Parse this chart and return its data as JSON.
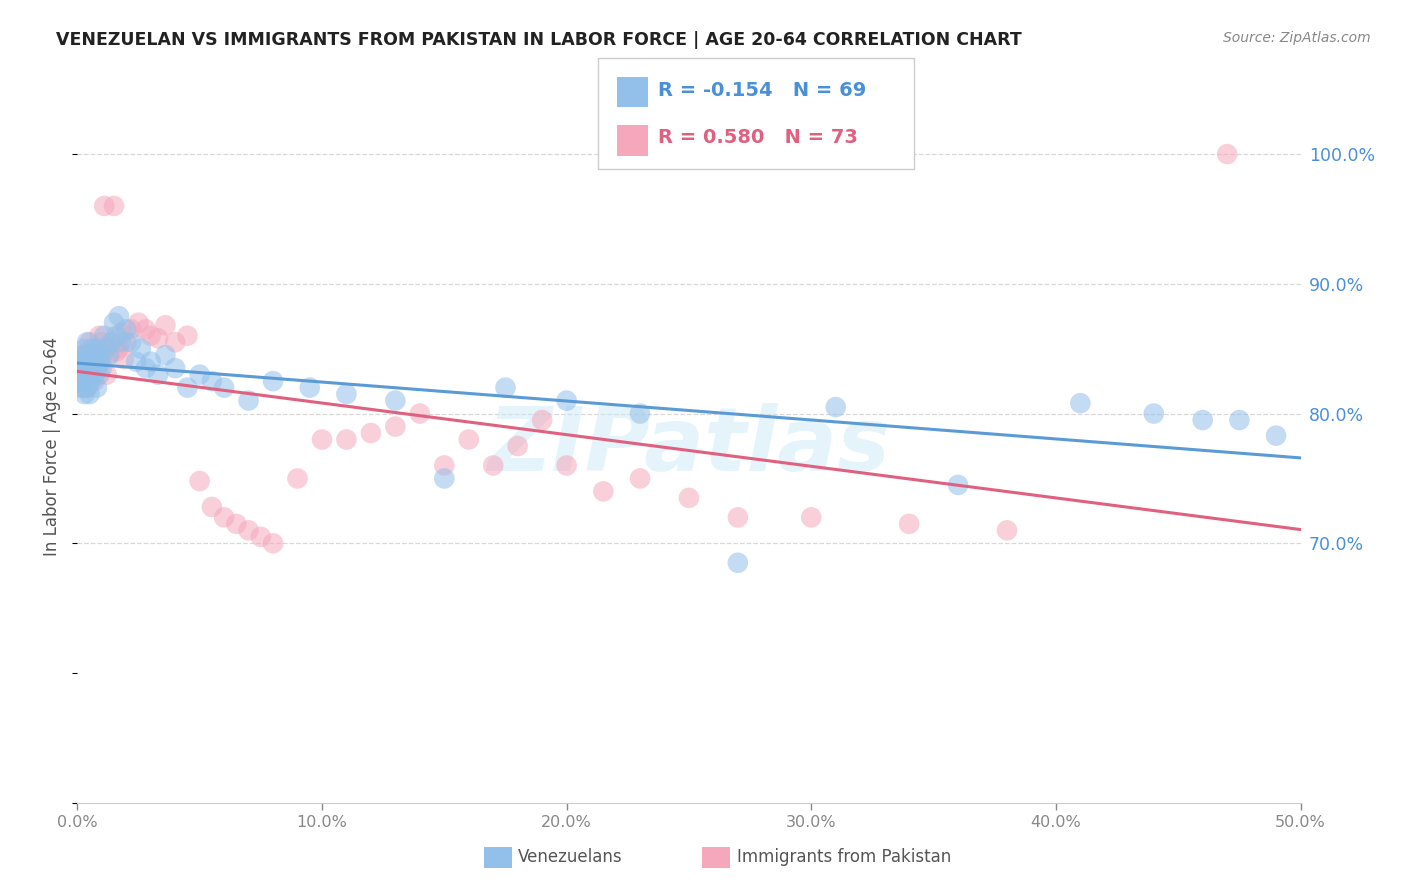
{
  "title": "VENEZUELAN VS IMMIGRANTS FROM PAKISTAN IN LABOR FORCE | AGE 20-64 CORRELATION CHART",
  "source": "Source: ZipAtlas.com",
  "ylabel": "In Labor Force | Age 20-64",
  "legend_venezuelans": "Venezuelans",
  "legend_pakistan": "Immigrants from Pakistan",
  "r_blue": "-0.154",
  "n_blue": "69",
  "r_pink": "0.580",
  "n_pink": "73",
  "blue_color": "#92c0ea",
  "pink_color": "#f5a8bc",
  "blue_line_color": "#5b9bd5",
  "pink_line_color": "#e06080",
  "blue_text_color": "#4a90d9",
  "pink_text_color": "#e06080",
  "watermark": "ZIPatlas",
  "background_color": "#ffffff",
  "xmin": 0.0,
  "xmax": 0.5,
  "ymin": 0.5,
  "ymax": 1.05,
  "ytick_values": [
    0.7,
    0.8,
    0.9,
    1.0
  ],
  "xtick_values": [
    0.0,
    0.1,
    0.2,
    0.3,
    0.4,
    0.5
  ],
  "grid_color": "#d8d8d8",
  "title_color": "#222222",
  "source_color": "#888888",
  "axis_label_color": "#555555",
  "ven_x": [
    0.001,
    0.001,
    0.002,
    0.002,
    0.002,
    0.003,
    0.003,
    0.003,
    0.003,
    0.004,
    0.004,
    0.004,
    0.004,
    0.005,
    0.005,
    0.005,
    0.005,
    0.006,
    0.006,
    0.006,
    0.006,
    0.007,
    0.007,
    0.007,
    0.008,
    0.008,
    0.008,
    0.009,
    0.009,
    0.01,
    0.01,
    0.011,
    0.012,
    0.013,
    0.014,
    0.015,
    0.016,
    0.017,
    0.018,
    0.02,
    0.022,
    0.024,
    0.026,
    0.028,
    0.03,
    0.033,
    0.036,
    0.04,
    0.045,
    0.05,
    0.055,
    0.06,
    0.07,
    0.08,
    0.095,
    0.11,
    0.13,
    0.15,
    0.175,
    0.2,
    0.23,
    0.27,
    0.31,
    0.36,
    0.41,
    0.44,
    0.46,
    0.475,
    0.49
  ],
  "ven_y": [
    0.84,
    0.825,
    0.835,
    0.82,
    0.845,
    0.85,
    0.83,
    0.815,
    0.84,
    0.835,
    0.845,
    0.82,
    0.855,
    0.83,
    0.84,
    0.825,
    0.815,
    0.85,
    0.835,
    0.842,
    0.825,
    0.84,
    0.83,
    0.845,
    0.835,
    0.82,
    0.85,
    0.84,
    0.83,
    0.845,
    0.835,
    0.86,
    0.85,
    0.845,
    0.855,
    0.87,
    0.86,
    0.875,
    0.855,
    0.865,
    0.855,
    0.84,
    0.85,
    0.835,
    0.84,
    0.83,
    0.845,
    0.835,
    0.82,
    0.83,
    0.825,
    0.82,
    0.81,
    0.825,
    0.82,
    0.815,
    0.81,
    0.75,
    0.82,
    0.81,
    0.8,
    0.685,
    0.805,
    0.745,
    0.808,
    0.8,
    0.795,
    0.795,
    0.783
  ],
  "pak_x": [
    0.001,
    0.001,
    0.002,
    0.002,
    0.002,
    0.003,
    0.003,
    0.003,
    0.003,
    0.004,
    0.004,
    0.004,
    0.005,
    0.005,
    0.005,
    0.005,
    0.006,
    0.006,
    0.006,
    0.007,
    0.007,
    0.007,
    0.008,
    0.008,
    0.009,
    0.009,
    0.01,
    0.01,
    0.011,
    0.012,
    0.013,
    0.014,
    0.015,
    0.016,
    0.017,
    0.018,
    0.019,
    0.02,
    0.022,
    0.025,
    0.028,
    0.03,
    0.033,
    0.036,
    0.04,
    0.045,
    0.05,
    0.055,
    0.06,
    0.065,
    0.07,
    0.075,
    0.08,
    0.09,
    0.1,
    0.11,
    0.12,
    0.13,
    0.14,
    0.15,
    0.16,
    0.17,
    0.18,
    0.19,
    0.2,
    0.215,
    0.23,
    0.25,
    0.27,
    0.3,
    0.34,
    0.38,
    0.47
  ],
  "pak_y": [
    0.84,
    0.82,
    0.835,
    0.825,
    0.845,
    0.83,
    0.845,
    0.82,
    0.838,
    0.83,
    0.845,
    0.82,
    0.84,
    0.855,
    0.825,
    0.84,
    0.85,
    0.835,
    0.83,
    0.845,
    0.84,
    0.825,
    0.85,
    0.835,
    0.845,
    0.86,
    0.855,
    0.84,
    0.96,
    0.83,
    0.845,
    0.855,
    0.96,
    0.848,
    0.85,
    0.862,
    0.842,
    0.855,
    0.865,
    0.87,
    0.865,
    0.86,
    0.858,
    0.868,
    0.855,
    0.86,
    0.748,
    0.728,
    0.72,
    0.715,
    0.71,
    0.705,
    0.7,
    0.75,
    0.78,
    0.78,
    0.785,
    0.79,
    0.8,
    0.76,
    0.78,
    0.76,
    0.775,
    0.795,
    0.76,
    0.74,
    0.75,
    0.735,
    0.72,
    0.72,
    0.715,
    0.71,
    1.0
  ]
}
